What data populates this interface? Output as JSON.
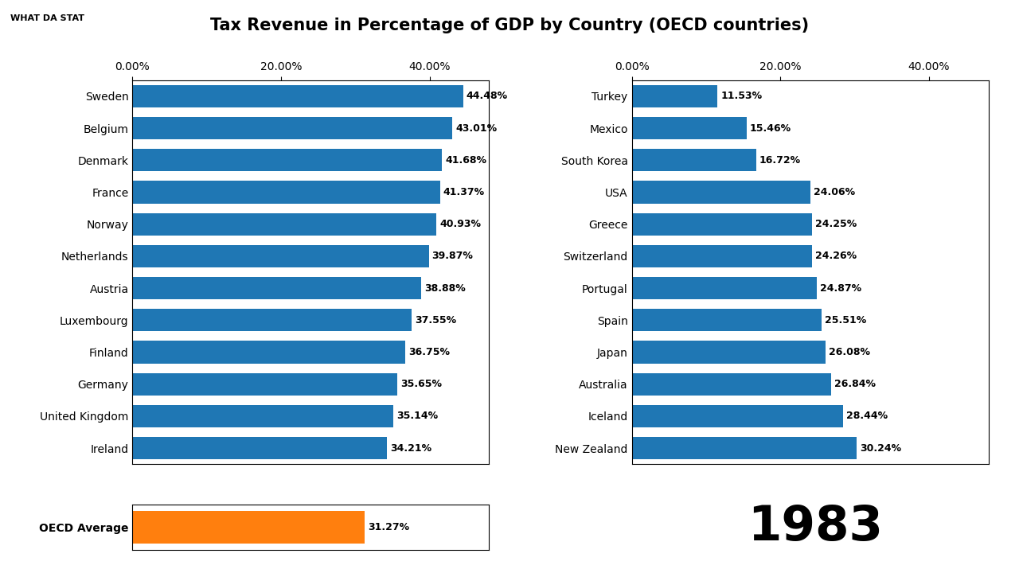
{
  "chart_data": [
    {
      "type": "bar",
      "orientation": "horizontal",
      "title": "Tax Revenue in Percentage of GDP by Country (OECD countries)",
      "categories": [
        "Sweden",
        "Belgium",
        "Denmark",
        "France",
        "Norway",
        "Netherlands",
        "Austria",
        "Luxembourg",
        "Finland",
        "Germany",
        "United Kingdom",
        "Ireland"
      ],
      "values": [
        44.48,
        43.01,
        41.68,
        41.37,
        40.93,
        39.87,
        38.88,
        37.55,
        36.75,
        35.65,
        35.14,
        34.21
      ],
      "value_labels": [
        "44.48%",
        "43.01%",
        "41.68%",
        "41.37%",
        "40.93%",
        "39.87%",
        "38.88%",
        "37.55%",
        "36.75%",
        "35.65%",
        "35.14%",
        "34.21%"
      ],
      "data_labels": true,
      "xlim": [
        0,
        48
      ],
      "xticks": [
        {
          "value": 0,
          "label": "0.00%"
        },
        {
          "value": 20,
          "label": "20.00%"
        },
        {
          "value": 40,
          "label": "40.00%"
        }
      ],
      "grid": false
    },
    {
      "type": "bar",
      "orientation": "horizontal",
      "categories": [
        "Turkey",
        "Mexico",
        "South Korea",
        "USA",
        "Greece",
        "Switzerland",
        "Portugal",
        "Spain",
        "Japan",
        "Australia",
        "Iceland",
        "New Zealand"
      ],
      "values": [
        11.53,
        15.46,
        16.72,
        24.06,
        24.25,
        24.26,
        24.87,
        25.51,
        26.08,
        26.84,
        28.44,
        30.24
      ],
      "value_labels": [
        "11.53%",
        "15.46%",
        "16.72%",
        "24.06%",
        "24.25%",
        "24.26%",
        "24.87%",
        "25.51%",
        "26.08%",
        "26.84%",
        "28.44%",
        "30.24%"
      ],
      "data_labels": true,
      "xlim": [
        0,
        48
      ],
      "xticks": [
        {
          "value": 0,
          "label": "0.00%"
        },
        {
          "value": 20,
          "label": "20.00%"
        },
        {
          "value": 40,
          "label": "40.00%"
        }
      ],
      "grid": false
    },
    {
      "type": "bar",
      "orientation": "horizontal",
      "categories": [
        "OECD Average"
      ],
      "values": [
        31.27
      ],
      "value_labels": [
        "31.27%"
      ],
      "data_labels": true,
      "xlim": [
        0,
        48
      ],
      "tick_labels": "y",
      "grid": false,
      "annotations": [
        "1983",
        "WHAT DA STAT"
      ]
    }
  ]
}
